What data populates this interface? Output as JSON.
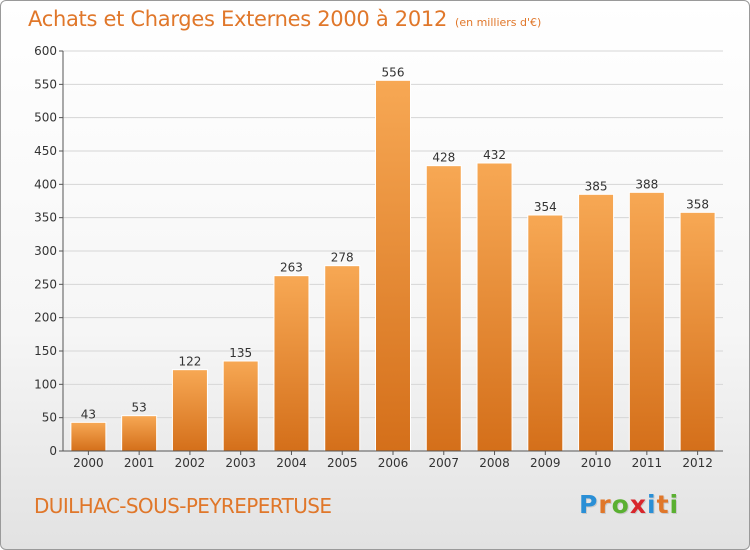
{
  "chart_data": {
    "type": "bar",
    "title": "Achats et Charges Externes 2000 à 2012",
    "subtitle": "(en milliers d'€)",
    "categories": [
      "2000",
      "2001",
      "2002",
      "2003",
      "2004",
      "2005",
      "2006",
      "2007",
      "2008",
      "2009",
      "2010",
      "2011",
      "2012"
    ],
    "values": [
      43,
      53,
      122,
      135,
      263,
      278,
      556,
      428,
      432,
      354,
      385,
      388,
      358
    ],
    "ylim": [
      0,
      600
    ],
    "yticks": [
      0,
      50,
      100,
      150,
      200,
      250,
      300,
      350,
      400,
      450,
      500,
      550,
      600
    ],
    "grid": true,
    "bar_color": "#f39b44",
    "bar_color_dark": "#d8741c"
  },
  "footer": {
    "town": "DUILHAC-SOUS-PEYREPERTUSE",
    "logo_letters": [
      "P",
      "r",
      "o",
      "x",
      "i",
      "t",
      "i"
    ],
    "logo_colors": [
      "#2a8fd6",
      "#e0772a",
      "#5ab031",
      "#d8262c",
      "#2a8fd6",
      "#e0772a",
      "#5ab031"
    ]
  }
}
